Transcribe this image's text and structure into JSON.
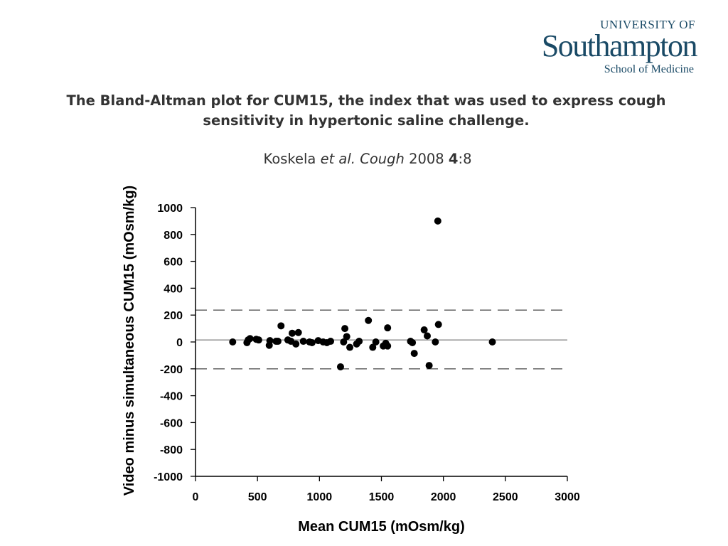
{
  "logo": {
    "line1": "UNIVERSITY OF",
    "line2": "Southampton",
    "line3": "School of Medicine"
  },
  "title": "The Bland-Altman plot for CUM15, the index that was used to express cough sensitivity in hypertonic saline challenge.",
  "citation": {
    "author": "Koskela",
    "etal": "et al.",
    "journal": "Cough",
    "year": "2008",
    "volume": "4",
    "article": ":8"
  },
  "chart_data": {
    "type": "scatter",
    "xlabel": "Mean CUM15 (mOsm/kg)",
    "ylabel": "Video minus simultaneous CUM15 (mOsm/kg)",
    "xlim": [
      0,
      3000
    ],
    "ylim": [
      -1000,
      1000
    ],
    "xticks": [
      0,
      500,
      1000,
      1500,
      2000,
      2500,
      3000
    ],
    "yticks": [
      -1000,
      -800,
      -600,
      -400,
      -200,
      0,
      200,
      400,
      600,
      800,
      1000
    ],
    "grid": false,
    "reference_lines": [
      {
        "kind": "mean",
        "y": 15,
        "style": "solid"
      },
      {
        "kind": "upper-limit",
        "y": 237,
        "style": "dashed"
      },
      {
        "kind": "lower-limit",
        "y": -200,
        "style": "dashed"
      }
    ],
    "points": [
      {
        "x": 300,
        "y": 0
      },
      {
        "x": 415,
        "y": -5
      },
      {
        "x": 425,
        "y": 15
      },
      {
        "x": 440,
        "y": 25
      },
      {
        "x": 490,
        "y": 20
      },
      {
        "x": 510,
        "y": 15
      },
      {
        "x": 595,
        "y": -25
      },
      {
        "x": 600,
        "y": 10
      },
      {
        "x": 650,
        "y": 5
      },
      {
        "x": 665,
        "y": 5
      },
      {
        "x": 690,
        "y": 120
      },
      {
        "x": 745,
        "y": 15
      },
      {
        "x": 770,
        "y": 5
      },
      {
        "x": 780,
        "y": 65
      },
      {
        "x": 810,
        "y": -15
      },
      {
        "x": 830,
        "y": 70
      },
      {
        "x": 870,
        "y": 5
      },
      {
        "x": 920,
        "y": 0
      },
      {
        "x": 940,
        "y": -5
      },
      {
        "x": 990,
        "y": 10
      },
      {
        "x": 1030,
        "y": 0
      },
      {
        "x": 1060,
        "y": -5
      },
      {
        "x": 1090,
        "y": 5
      },
      {
        "x": 1170,
        "y": -185
      },
      {
        "x": 1195,
        "y": 0
      },
      {
        "x": 1205,
        "y": 100
      },
      {
        "x": 1220,
        "y": 40
      },
      {
        "x": 1245,
        "y": -40
      },
      {
        "x": 1300,
        "y": -15
      },
      {
        "x": 1320,
        "y": 5
      },
      {
        "x": 1395,
        "y": 160
      },
      {
        "x": 1430,
        "y": -40
      },
      {
        "x": 1455,
        "y": 0
      },
      {
        "x": 1515,
        "y": -30
      },
      {
        "x": 1535,
        "y": -10
      },
      {
        "x": 1550,
        "y": 105
      },
      {
        "x": 1550,
        "y": -30
      },
      {
        "x": 1735,
        "y": 5
      },
      {
        "x": 1750,
        "y": -5
      },
      {
        "x": 1765,
        "y": -85
      },
      {
        "x": 1845,
        "y": 90
      },
      {
        "x": 1870,
        "y": 45
      },
      {
        "x": 1885,
        "y": -175
      },
      {
        "x": 1935,
        "y": 0
      },
      {
        "x": 1955,
        "y": 900
      },
      {
        "x": 1960,
        "y": 130
      },
      {
        "x": 2395,
        "y": 0
      }
    ]
  }
}
